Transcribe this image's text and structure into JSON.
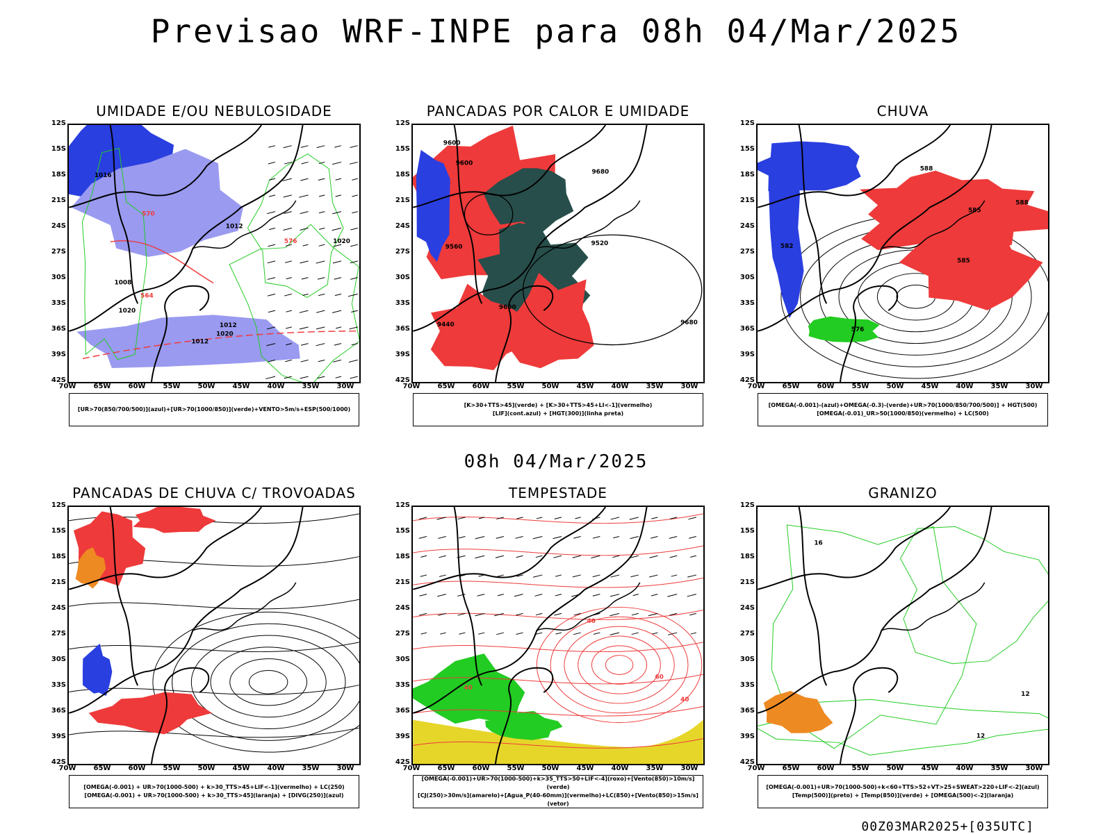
{
  "title": "Previsao WRF-INPE  para 08h 04/Mar/2025",
  "subtitle": "08h 04/Mar/2025",
  "footer": "00Z03MAR2025+[035UTC]",
  "axes": {
    "lat_ticks": [
      "12S",
      "15S",
      "18S",
      "21S",
      "24S",
      "27S",
      "30S",
      "33S",
      "36S",
      "39S",
      "42S"
    ],
    "lon_ticks": [
      "70W",
      "65W",
      "60W",
      "55W",
      "50W",
      "45W",
      "40W",
      "35W",
      "30W"
    ]
  },
  "colors": {
    "blue": "#2a3fe0",
    "lightblue": "#9a9af0",
    "green": "#22cc22",
    "red": "#ee3a3a",
    "darkteal": "#274e4a",
    "yellow": "#e6d62a",
    "orange": "#ee8a22",
    "black": "#000000"
  },
  "panels": [
    {
      "title": "UMIDADE E/OU NEBULOSIDADE",
      "legend": [
        "[UR>70(850/700/500)](azul)+[UR>70(1000/850)](verde)+VENTO>5m/s+ESP(500/1000)"
      ],
      "contour_labels": [
        "1012",
        "1012",
        "1012",
        "1016",
        "1020",
        "1020",
        "1020",
        "1008",
        "576",
        "570",
        "564"
      ]
    },
    {
      "title": "PANCADAS POR CALOR E UMIDADE",
      "legend": [
        "[K>30+TTS>45](verde) + [K>30+TTS>45+LI<-1](vermelho)",
        "[LIF](cont.azul) + [HGT(300)](linha preta)"
      ],
      "contour_labels": [
        "9600",
        "9560",
        "9520",
        "9440",
        "9680",
        "9600",
        "9600",
        "9680"
      ]
    },
    {
      "title": "CHUVA",
      "legend": [
        "[OMEGA(-0.001)-(azul)+OMEGA(-0.3)-(verde)+UR>70(1000/850/700/500)] + HGT(500)",
        "[OMEGA(-0.01)_UR>50(1000/850)(vermelho) + LC(500)"
      ],
      "contour_labels": [
        "585",
        "588",
        "585",
        "582",
        "576",
        "588"
      ]
    },
    {
      "title": "PANCADAS DE CHUVA C/ TROVOADAS",
      "legend": [
        "[OMEGA(-0.001) + UR>70(1000-500) + k>30_TTS>45+LIF<-1](vermelho) + LC(250)",
        "[OMEGA(-0.001) + UR>70(1000-500) + k>30_TTS>45](laranja) + [DIVG(250)](azul)"
      ],
      "contour_labels": []
    },
    {
      "title": "TEMPESTADE",
      "legend": [
        "[OMEGA(-0.001)+UR>70(1000-500)+k>35_TTS>50+LIF<-4](roxo)+[Vento(850)>10m/s](verde)",
        "[CJ(250)>30m/s](amarelo)+[Agua_P(40-60mm)](vermelho)+LC(850)+[Vento(850)>15m/s](vetor)"
      ],
      "contour_labels": [
        "40",
        "40",
        "60",
        "40"
      ]
    },
    {
      "title": "GRANIZO",
      "legend": [
        "[OMEGA(-0.001)+UR>70(1000-500)+k<60+TTS>52+VT>25+SWEAT>220+LIF<-2](azul)",
        "[Temp(500)](preto) + [Temp(850)](verde) + [OMEGA(500)<-2](laranja)"
      ],
      "contour_labels": [
        "12",
        "16",
        "12"
      ]
    }
  ],
  "chart_data": [
    {
      "type": "map",
      "title": "UMIDADE E/OU NEBULOSIDADE",
      "lat_range": [
        "12S",
        "42S"
      ],
      "lon_range": [
        "70W",
        "30W"
      ]
    },
    {
      "type": "map",
      "title": "PANCADAS POR CALOR E UMIDADE",
      "lat_range": [
        "12S",
        "42S"
      ],
      "lon_range": [
        "70W",
        "30W"
      ]
    },
    {
      "type": "map",
      "title": "CHUVA",
      "lat_range": [
        "12S",
        "42S"
      ],
      "lon_range": [
        "70W",
        "30W"
      ]
    },
    {
      "type": "map",
      "title": "PANCADAS DE CHUVA C/ TROVOADAS",
      "lat_range": [
        "12S",
        "42S"
      ],
      "lon_range": [
        "70W",
        "30W"
      ]
    },
    {
      "type": "map",
      "title": "TEMPESTADE",
      "lat_range": [
        "12S",
        "42S"
      ],
      "lon_range": [
        "70W",
        "30W"
      ]
    },
    {
      "type": "map",
      "title": "GRANIZO",
      "lat_range": [
        "12S",
        "42S"
      ],
      "lon_range": [
        "70W",
        "30W"
      ]
    }
  ]
}
